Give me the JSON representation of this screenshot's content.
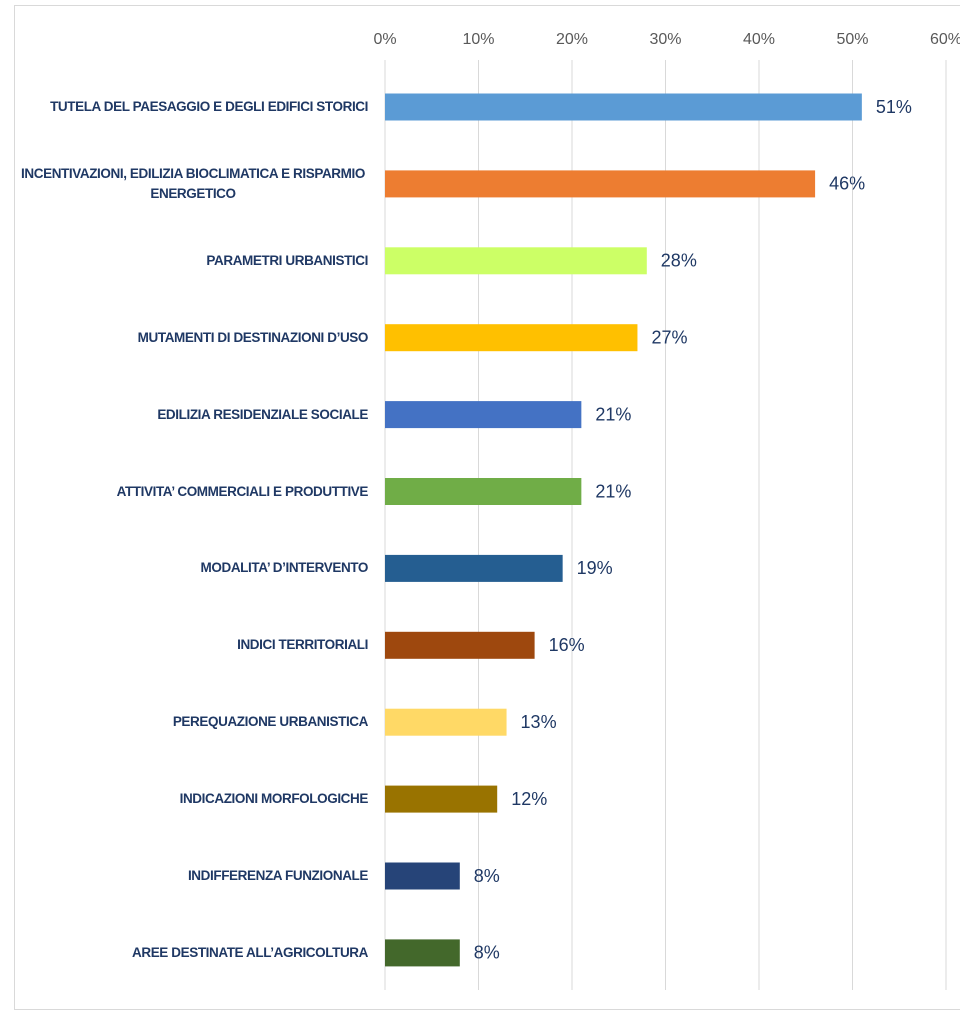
{
  "chart_data": {
    "type": "bar",
    "orientation": "horizontal",
    "categories": [
      "TUTELA DEL PAESAGGIO E DEGLI EDIFICI STORICI",
      "INCENTIVAZIONI, EDILIZIA BIOCLIMATICA E RISPARMIO ENERGETICO",
      "PARAMETRI URBANISTICI",
      "MUTAMENTI DI DESTINAZIONI D’USO",
      "EDILIZIA RESIDENZIALE SOCIALE",
      "ATTIVITA’ COMMERCIALI E PRODUTTIVE",
      "MODALITA’ D’INTERVENTO",
      "INDICI TERRITORIALI",
      "PEREQUAZIONE URBANISTICA",
      "INDICAZIONI MORFOLOGICHE",
      "INDIFFERENZA FUNZIONALE",
      "AREE DESTINATE ALL’AGRICOLTURA"
    ],
    "values": [
      51,
      46,
      28,
      27,
      21,
      21,
      19,
      16,
      13,
      12,
      8,
      8
    ],
    "value_labels": [
      "51%",
      "46%",
      "28%",
      "27%",
      "21%",
      "21%",
      "19%",
      "16%",
      "13%",
      "12%",
      "8%",
      "8%"
    ],
    "colors": [
      "#5b9bd5",
      "#ed7d31",
      "#ccff66",
      "#ffc000",
      "#4472c4",
      "#70ad47",
      "#255e91",
      "#9e480e",
      "#ffd966",
      "#997300",
      "#264478",
      "#43682b"
    ],
    "xlim": [
      0,
      60
    ],
    "xticks": [
      {
        "value": 0,
        "label": "0%"
      },
      {
        "value": 10,
        "label": "10%"
      },
      {
        "value": 20,
        "label": "20%"
      },
      {
        "value": 30,
        "label": "30%"
      },
      {
        "value": 40,
        "label": "40%"
      },
      {
        "value": 50,
        "label": "50%"
      },
      {
        "value": 60,
        "label": "60%"
      }
    ],
    "grid": true
  }
}
